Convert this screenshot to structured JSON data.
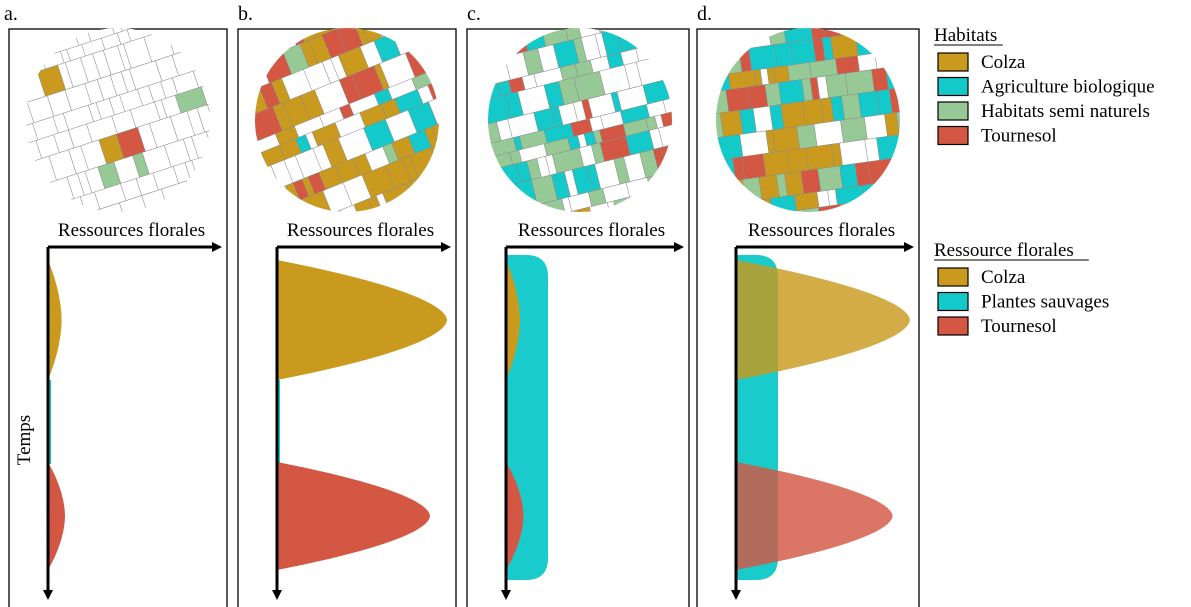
{
  "panels": [
    {
      "letter": "a.",
      "axis_x_label": "Ressources florales",
      "axis_y_label": "Temps"
    },
    {
      "letter": "b.",
      "axis_x_label": "Ressources florales",
      "axis_y_label": ""
    },
    {
      "letter": "c.",
      "axis_x_label": "Ressources florales",
      "axis_y_label": ""
    },
    {
      "letter": "d.",
      "axis_x_label": "Ressources florales",
      "axis_y_label": ""
    }
  ],
  "legend_habitats": {
    "title": "Habitats",
    "items": [
      {
        "label": "Colza",
        "color": "#c99a1e"
      },
      {
        "label": "Agriculture biologique",
        "color": "#13c9c9"
      },
      {
        "label": "Habitats semi naturels",
        "color": "#97c996"
      },
      {
        "label": "Tournesol",
        "color": "#d35743"
      }
    ]
  },
  "legend_ressources": {
    "title": "Ressource florales",
    "items": [
      {
        "label": "Colza",
        "color": "#c99a1e"
      },
      {
        "label": "Plantes sauvages",
        "color": "#13c9c9"
      },
      {
        "label": "Tournesol",
        "color": "#d35743"
      }
    ]
  },
  "resource_levels": {
    "note_units": "relative floral resource peak (0-1)",
    "a": {
      "colza": 0.08,
      "plantes_sauvages": 0.02,
      "tournesol": 0.1
    },
    "b": {
      "colza": 1.0,
      "plantes_sauvages": 0.02,
      "tournesol": 0.9
    },
    "c": {
      "colza": 0.08,
      "plantes_sauvages": 0.28,
      "tournesol": 0.1
    },
    "d": {
      "colza": 1.0,
      "plantes_sauvages": 0.28,
      "tournesol": 0.9
    }
  }
}
